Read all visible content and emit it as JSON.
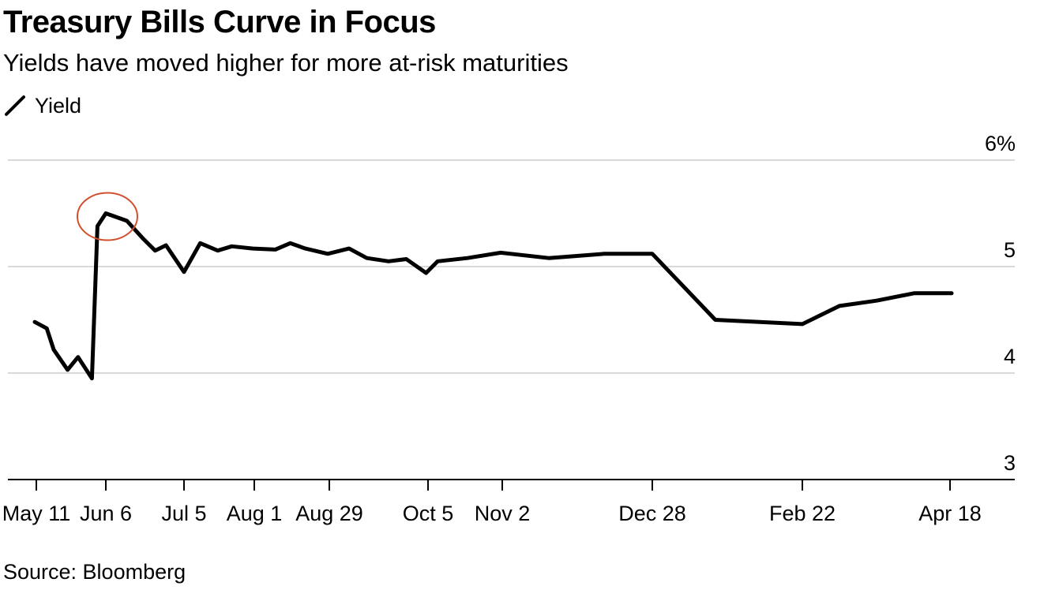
{
  "title": "Treasury Bills Curve in Focus",
  "subtitle": "Yields have moved higher for more at-risk maturities",
  "legend": {
    "label": "Yield",
    "icon": "line-swatch-icon"
  },
  "source": "Source: Bloomberg",
  "colors": {
    "line": "#000000",
    "grid": "#d9d9d9",
    "axis": "#000000",
    "highlight": "#d24f2e"
  },
  "chart_data": {
    "type": "line",
    "xlabel": "",
    "ylabel": "",
    "ylim": [
      3,
      6
    ],
    "y_unit": "%",
    "y_ticks": [
      {
        "value": 6,
        "label": "6%"
      },
      {
        "value": 5,
        "label": "5"
      },
      {
        "value": 4,
        "label": "4"
      },
      {
        "value": 3,
        "label": "3"
      }
    ],
    "x_ticks": [
      "May 11",
      "Jun 6",
      "Jul 5",
      "Aug 1",
      "Aug 29",
      "Oct 5",
      "Nov 2",
      "Dec 28",
      "Feb 22",
      "Apr 18"
    ],
    "grid": true,
    "legend_position": "top-left",
    "series": [
      {
        "name": "Yield",
        "x": [
          -0.1,
          0.15,
          0.25,
          0.45,
          0.6,
          0.8,
          0.88,
          1.0,
          1.27,
          1.48,
          1.63,
          1.77,
          2.0,
          2.23,
          2.48,
          2.68,
          2.98,
          3.28,
          3.48,
          3.68,
          3.98,
          4.2,
          4.38,
          4.6,
          4.78,
          4.98,
          5.13,
          5.53,
          5.98,
          6.31,
          6.68,
          7.0,
          7.42,
          8.0,
          8.5,
          9.0,
          9.5,
          10.0
        ],
        "values": [
          4.48,
          4.42,
          4.22,
          4.03,
          4.15,
          3.95,
          5.38,
          5.5,
          5.43,
          5.26,
          5.15,
          5.2,
          4.95,
          5.22,
          5.15,
          5.19,
          5.17,
          5.16,
          5.22,
          5.17,
          5.12,
          5.17,
          5.08,
          5.05,
          5.07,
          4.94,
          5.05,
          5.08,
          5.13,
          5.08,
          5.12,
          5.12,
          4.5,
          4.46,
          4.63,
          4.68,
          4.75,
          4.75
        ]
      }
    ],
    "annotations": [
      {
        "type": "circle",
        "x": 1.02,
        "y": 5.47
      }
    ]
  }
}
